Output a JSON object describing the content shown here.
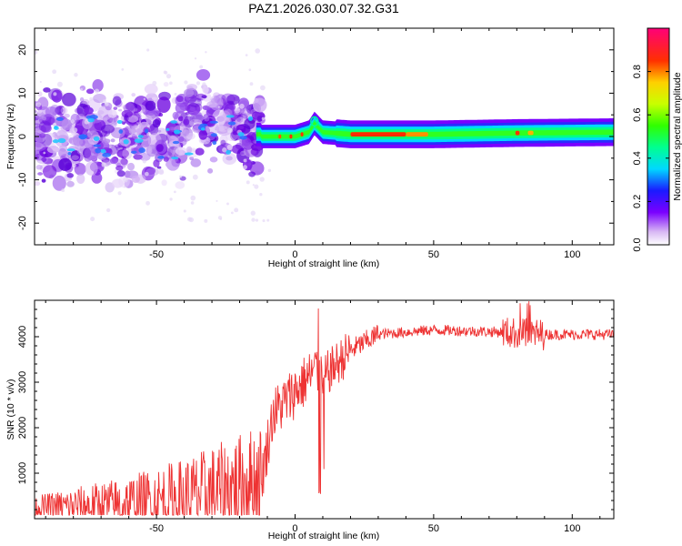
{
  "title": "PAZ1.2026.030.07.32.G31",
  "chart_data": [
    {
      "type": "heatmap",
      "xlabel": "Height of straight line (km)",
      "ylabel": "Frequency (Hz)",
      "xlim": [
        -94,
        115
      ],
      "ylim": [
        -25,
        25
      ],
      "xticks": [
        -50,
        0,
        50,
        100
      ],
      "xtick_labels": [
        "-50",
        "0",
        "50",
        "100"
      ],
      "yticks": [
        -20,
        -10,
        0,
        10,
        20
      ],
      "ytick_labels": [
        "-20",
        "-10",
        "0",
        "10",
        "20"
      ],
      "colorbar": {
        "label": "Normalized spectral amplitude",
        "range": [
          0,
          1
        ],
        "ticks": [
          0.0,
          0.2,
          0.4,
          0.6,
          0.8
        ],
        "tick_labels": [
          "0.0",
          "0.2",
          "0.4",
          "0.6",
          "0.8"
        ]
      },
      "description_ridge": [
        {
          "x": -12,
          "freq": 0.0
        },
        {
          "x": 0,
          "freq": 0.0
        },
        {
          "x": 5,
          "freq": 1.0
        },
        {
          "x": 7,
          "freq": 3.0
        },
        {
          "x": 10,
          "freq": 1.0
        },
        {
          "x": 20,
          "freq": 0.5
        },
        {
          "x": 50,
          "freq": 0.5
        },
        {
          "x": 80,
          "freq": 0.8
        },
        {
          "x": 115,
          "freq": 1.0
        }
      ]
    },
    {
      "type": "line",
      "xlabel": "Height of straight line (km)",
      "ylabel": "SNR (10 * v/v)",
      "xlim": [
        -94,
        115
      ],
      "ylim": [
        0,
        4800
      ],
      "xticks": [
        -50,
        0,
        50,
        100
      ],
      "xtick_labels": [
        "-50",
        "0",
        "50",
        "100"
      ],
      "yticks": [
        1000,
        2000,
        3000,
        4000
      ],
      "ytick_labels": [
        "1000",
        "2000",
        "3000",
        "4000"
      ],
      "series": [
        {
          "name": "SNR",
          "color": "#ee3333",
          "trend": [
            {
              "x": -94,
              "y": 250
            },
            {
              "x": -60,
              "y": 300
            },
            {
              "x": -40,
              "y": 450
            },
            {
              "x": -25,
              "y": 650
            },
            {
              "x": -12,
              "y": 900
            },
            {
              "x": -8,
              "y": 2300
            },
            {
              "x": 0,
              "y": 2800
            },
            {
              "x": 8,
              "y": 3300
            },
            {
              "x": 10,
              "y": 3100
            },
            {
              "x": 20,
              "y": 3700
            },
            {
              "x": 30,
              "y": 4050
            },
            {
              "x": 50,
              "y": 4150
            },
            {
              "x": 75,
              "y": 4100
            },
            {
              "x": 85,
              "y": 4050
            },
            {
              "x": 115,
              "y": 4050
            }
          ]
        }
      ]
    }
  ],
  "colors": {
    "line": "#ee3333",
    "frame": "#000000"
  }
}
